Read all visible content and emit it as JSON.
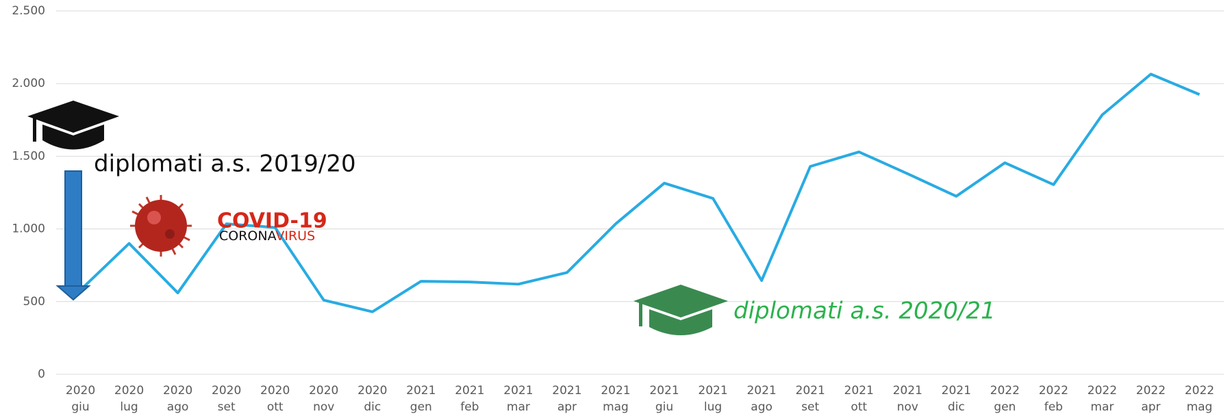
{
  "chart_data": {
    "type": "line",
    "categories": [
      [
        "2020",
        "giu"
      ],
      [
        "2020",
        "lug"
      ],
      [
        "2020",
        "ago"
      ],
      [
        "2020",
        "set"
      ],
      [
        "2020",
        "ott"
      ],
      [
        "2020",
        "nov"
      ],
      [
        "2020",
        "dic"
      ],
      [
        "2021",
        "gen"
      ],
      [
        "2021",
        "feb"
      ],
      [
        "2021",
        "mar"
      ],
      [
        "2021",
        "apr"
      ],
      [
        "2021",
        "mag"
      ],
      [
        "2021",
        "giu"
      ],
      [
        "2021",
        "lug"
      ],
      [
        "2021",
        "ago"
      ],
      [
        "2021",
        "set"
      ],
      [
        "2021",
        "ott"
      ],
      [
        "2021",
        "nov"
      ],
      [
        "2021",
        "dic"
      ],
      [
        "2022",
        "gen"
      ],
      [
        "2022",
        "feb"
      ],
      [
        "2022",
        "mar"
      ],
      [
        "2022",
        "apr"
      ],
      [
        "2022",
        "mag"
      ]
    ],
    "values": [
      580,
      900,
      560,
      1035,
      1010,
      510,
      430,
      640,
      635,
      620,
      700,
      1035,
      1315,
      1210,
      645,
      1430,
      1530,
      1380,
      1225,
      1455,
      1305,
      1785,
      2065,
      1925
    ],
    "color": "#29abe2",
    "ylim": [
      0,
      2500
    ],
    "yticks": [
      0,
      500,
      {
        "value": 1000,
        "label": "1.000"
      },
      {
        "value": 1500,
        "label": "1.500"
      },
      {
        "value": 2000,
        "label": "2.000"
      },
      {
        "value": 2500,
        "label": "2.500"
      }
    ],
    "grid": true,
    "annotations": {
      "graduates_2019": "diplomati a.s. 2019/20",
      "graduates_2020": "diplomati a.s. 2020/21",
      "covid": "COVID-19",
      "corona": "CORONA",
      "virus": "VIRUS"
    }
  }
}
